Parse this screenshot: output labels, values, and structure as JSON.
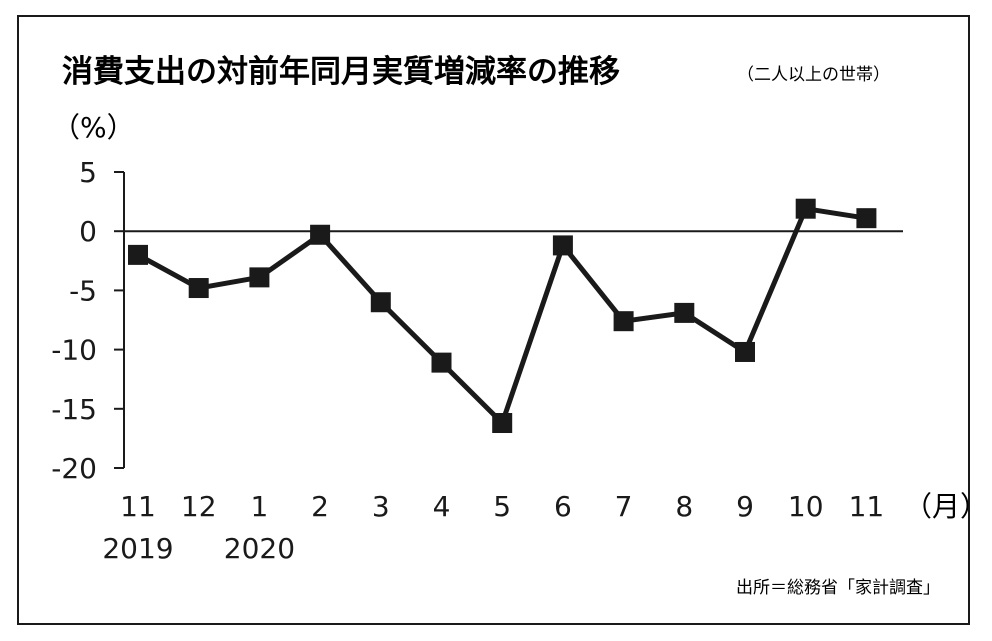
{
  "chart_data": {
    "type": "line",
    "title": "消費支出の対前年同月実質増減率の推移",
    "subtitle": "（二人以上の世帯）",
    "ylabel": "（%）",
    "xunit": "（月）",
    "source": "出所＝総務省「家計調査」",
    "ylim": [
      -20,
      5
    ],
    "yticks": [
      "5",
      "0",
      "-5",
      "-10",
      "-15",
      "-20"
    ],
    "yticks_values": [
      5,
      0,
      -5,
      -10,
      -15,
      -20
    ],
    "categories": [
      "11",
      "12",
      "1",
      "2",
      "3",
      "4",
      "5",
      "6",
      "7",
      "8",
      "9",
      "10",
      "11"
    ],
    "year_labels": [
      {
        "label": "2019",
        "category_index": 0
      },
      {
        "label": "2020",
        "category_index": 2
      }
    ],
    "series": [
      {
        "values": [
          -2.0,
          -4.8,
          -3.9,
          -0.3,
          -6.0,
          -11.1,
          -16.2,
          -1.2,
          -7.6,
          -6.9,
          -10.2,
          1.9,
          1.1
        ]
      }
    ],
    "zero_line": true,
    "marker": "square",
    "colors": {
      "line": "#1a1a1a",
      "marker": "#1a1a1a"
    }
  }
}
